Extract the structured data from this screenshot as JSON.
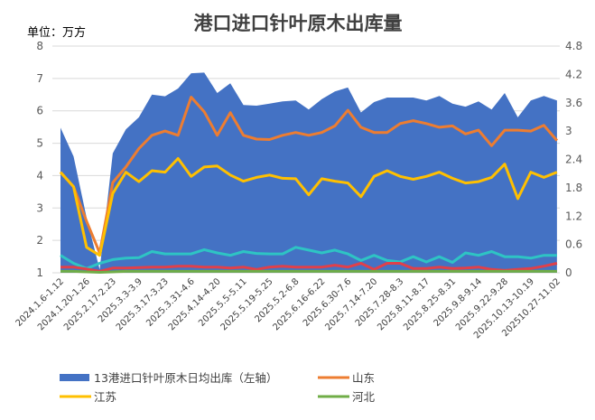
{
  "chart_data": {
    "type": "area+line",
    "title": "港口进口针叶原木出库量",
    "unit_label": "单位：万方",
    "left_axis": {
      "ylim": [
        1,
        8
      ],
      "ticks": [
        "1",
        "2",
        "3",
        "4",
        "5",
        "6",
        "7",
        "8"
      ]
    },
    "right_axis": {
      "ylim": [
        0,
        4.8
      ],
      "ticks": [
        "0",
        "0.6",
        "1.2",
        "1.8",
        "2.4",
        "3",
        "3.6",
        "4.2",
        "4.8"
      ]
    },
    "grid": true,
    "legend_position": "bottom",
    "point_count": 39,
    "x_tick_labels": [
      "2024.1.6-1.12",
      "2024.1.20-1.26",
      "2025.2.17-2.23",
      "2025.3.3-3.9",
      "2025.3.17-3.23",
      "2025.3.31-4.6",
      "2025.4.14-4.20",
      "2025.5.5-5.11",
      "2025.5.19-5.25",
      "2025.5.2-6.8",
      "2025.6.16-6.22",
      "2025.6.30-7.6",
      "2025.7.14-7.20",
      "2025.7.28-8.3",
      "2025.8.11-8.17",
      "2025.8.25-8.31",
      "2025.9.8-9.14",
      "2025.9.22-9.28",
      "2025.10.13-10.19",
      "202510.27-11.02"
    ],
    "series": [
      {
        "name": "13港进口针叶原木日均出库（左轴）",
        "type": "area",
        "axis": "left",
        "color": "#4472C4",
        "values": [
          5.48,
          4.59,
          2.7,
          1.1,
          4.69,
          5.43,
          5.8,
          6.5,
          6.45,
          6.69,
          7.16,
          7.18,
          6.55,
          6.85,
          6.18,
          6.16,
          6.22,
          6.29,
          6.32,
          6.04,
          6.36,
          6.6,
          6.72,
          5.95,
          6.27,
          6.41,
          6.41,
          6.41,
          6.32,
          6.46,
          6.22,
          6.13,
          6.29,
          6.04,
          6.55,
          5.8,
          6.32,
          6.46,
          6.32
        ]
      },
      {
        "name": "山东",
        "type": "line",
        "axis": "right",
        "color": "#ED7D31",
        "values": [
          2.13,
          1.82,
          1.09,
          0.42,
          1.91,
          2.24,
          2.63,
          2.91,
          3.0,
          2.91,
          3.72,
          3.41,
          2.91,
          3.39,
          2.91,
          2.83,
          2.82,
          2.91,
          2.97,
          2.91,
          2.97,
          3.11,
          3.44,
          3.08,
          2.97,
          2.97,
          3.16,
          3.22,
          3.16,
          3.08,
          3.11,
          2.94,
          3.02,
          2.69,
          3.02,
          3.02,
          3.0,
          3.12,
          2.8
        ]
      },
      {
        "name": "江苏",
        "type": "line",
        "axis": "right",
        "color": "#FFC000",
        "values": [
          2.13,
          1.82,
          0.54,
          0.37,
          1.68,
          2.13,
          1.93,
          2.16,
          2.13,
          2.42,
          2.04,
          2.24,
          2.26,
          2.07,
          1.94,
          2.02,
          2.07,
          2.0,
          1.99,
          1.65,
          1.99,
          1.94,
          1.9,
          1.61,
          2.04,
          2.16,
          2.04,
          1.98,
          2.04,
          2.13,
          2.0,
          1.9,
          1.93,
          2.02,
          2.3,
          1.57,
          2.13,
          2.02,
          2.13
        ]
      },
      {
        "name": "",
        "type": "line",
        "axis": "right",
        "color": "#2EC4C4",
        "values": [
          0.37,
          0.2,
          0.09,
          0.2,
          0.28,
          0.31,
          0.32,
          0.45,
          0.4,
          0.4,
          0.4,
          0.49,
          0.42,
          0.37,
          0.45,
          0.41,
          0.4,
          0.4,
          0.54,
          0.48,
          0.42,
          0.48,
          0.4,
          0.26,
          0.37,
          0.26,
          0.23,
          0.34,
          0.23,
          0.34,
          0.22,
          0.42,
          0.37,
          0.45,
          0.34,
          0.34,
          0.31,
          0.37,
          0.37
        ]
      },
      {
        "name": "",
        "type": "line",
        "axis": "right",
        "color": "#E0404A",
        "values": [
          0.12,
          0.12,
          0.08,
          0.03,
          0.1,
          0.1,
          0.11,
          0.12,
          0.12,
          0.14,
          0.14,
          0.12,
          0.12,
          0.1,
          0.12,
          0.07,
          0.12,
          0.14,
          0.12,
          0.12,
          0.12,
          0.16,
          0.12,
          0.2,
          0.07,
          0.2,
          0.2,
          0.09,
          0.09,
          0.12,
          0.09,
          0.1,
          0.12,
          0.07,
          0.05,
          0.07,
          0.09,
          0.14,
          0.2
        ]
      },
      {
        "name": "河北",
        "type": "line",
        "axis": "right",
        "color": "#70AD47",
        "values": [
          0.03,
          0.03,
          0.02,
          0.01,
          0.02,
          0.03,
          0.03,
          0.03,
          0.03,
          0.03,
          0.03,
          0.03,
          0.03,
          0.03,
          0.03,
          0.03,
          0.03,
          0.03,
          0.03,
          0.03,
          0.03,
          0.03,
          0.03,
          0.03,
          0.03,
          0.03,
          0.03,
          0.03,
          0.03,
          0.03,
          0.03,
          0.03,
          0.03,
          0.03,
          0.03,
          0.03,
          0.03,
          0.03,
          0.03
        ]
      }
    ],
    "legend": [
      {
        "label": "13港进口针叶原木日均出库（左轴）",
        "color": "#4472C4",
        "kind": "box"
      },
      {
        "label": "山东",
        "color": "#ED7D31",
        "kind": "line"
      },
      {
        "label": "江苏",
        "color": "#FFC000",
        "kind": "line"
      },
      {
        "label": "河北",
        "color": "#70AD47",
        "kind": "line"
      }
    ]
  }
}
